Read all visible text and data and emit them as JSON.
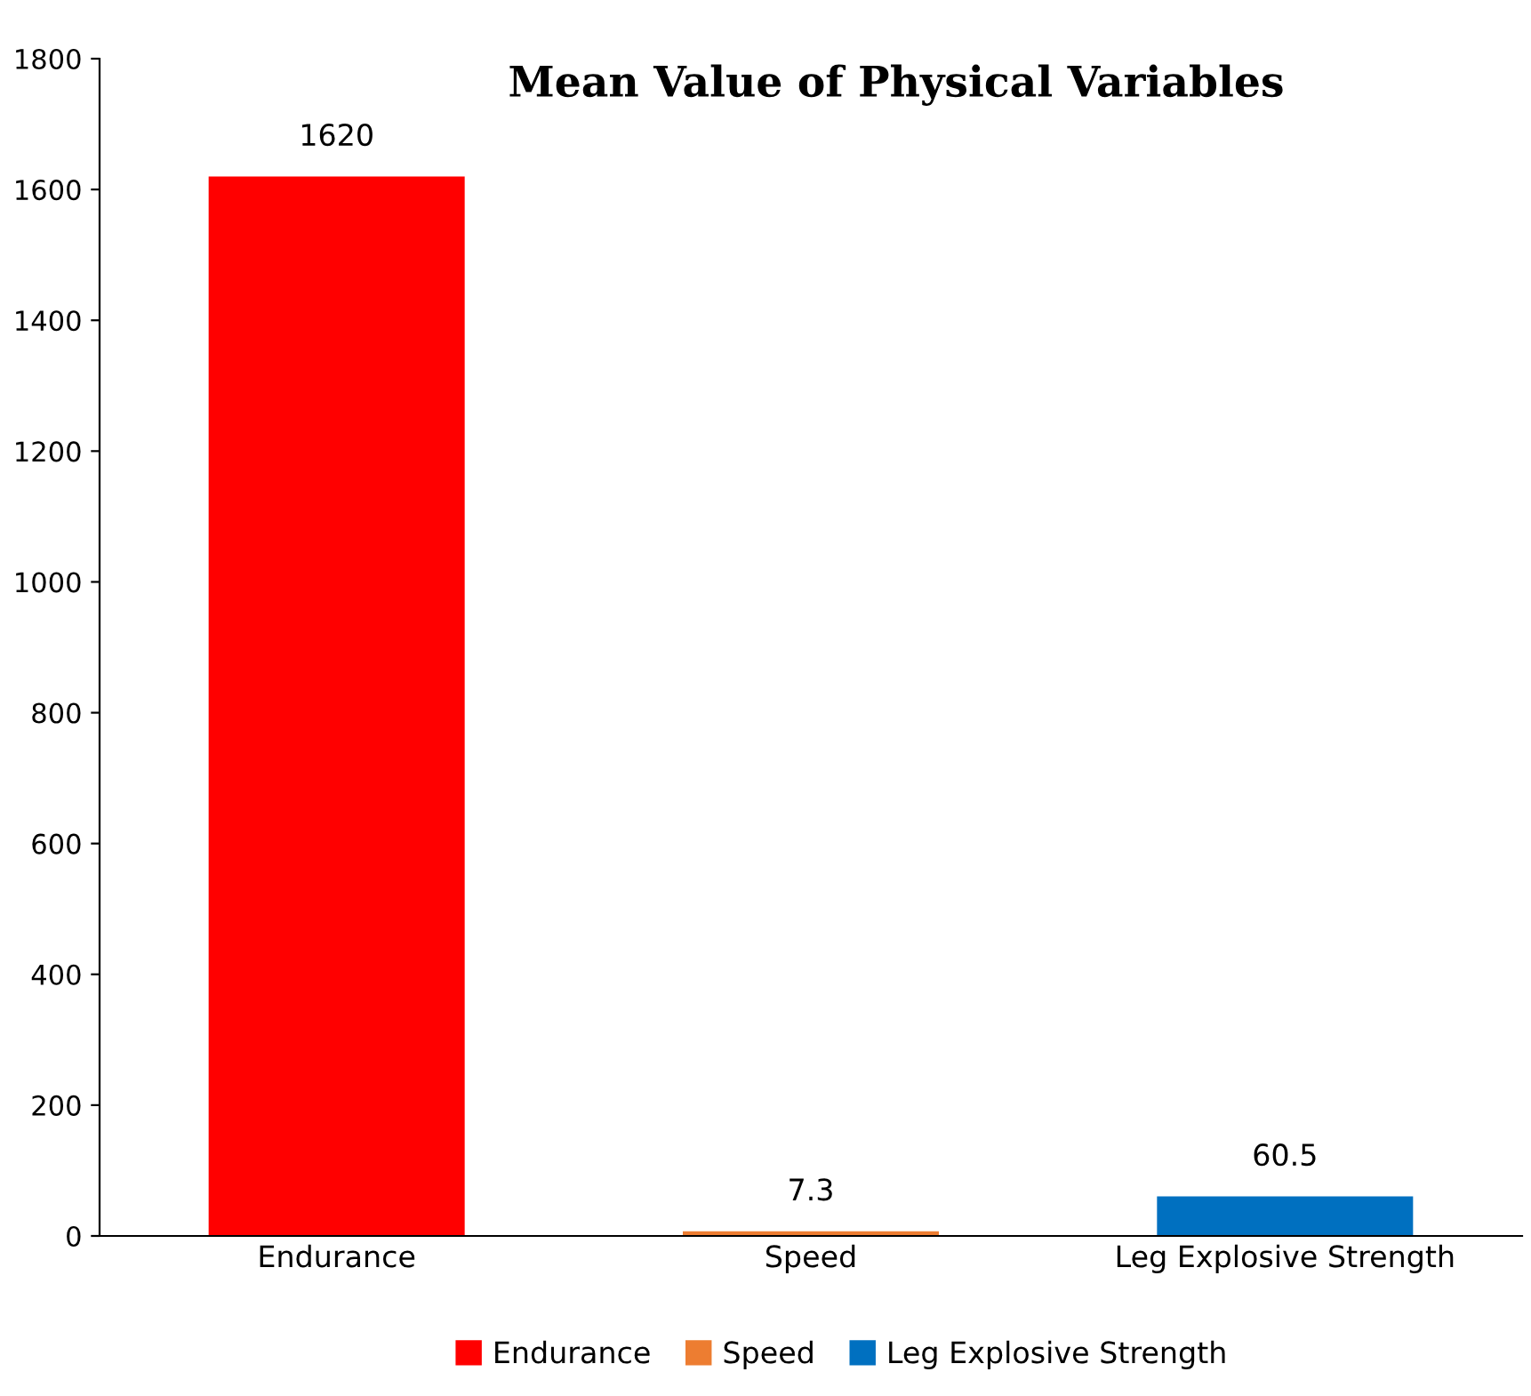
{
  "chart_data": {
    "type": "bar",
    "title": "Mean Value of Physical Variables",
    "categories": [
      "Endurance",
      "Speed",
      "Leg Explosive Strength"
    ],
    "series": [
      {
        "name": "Endurance",
        "color": "#ff0000",
        "values": [
          1620,
          null,
          null
        ]
      },
      {
        "name": "Speed",
        "color": "#ed7d31",
        "values": [
          null,
          7.3,
          null
        ]
      },
      {
        "name": "Leg Explosive Strength",
        "color": "#0070c0",
        "values": [
          null,
          null,
          60.5
        ]
      }
    ],
    "ylim": [
      0,
      1800
    ],
    "yticks": [
      0,
      200,
      400,
      600,
      800,
      1000,
      1200,
      1400,
      1600,
      1800
    ],
    "data_labels": true,
    "grid": false,
    "legend": "bottom"
  }
}
